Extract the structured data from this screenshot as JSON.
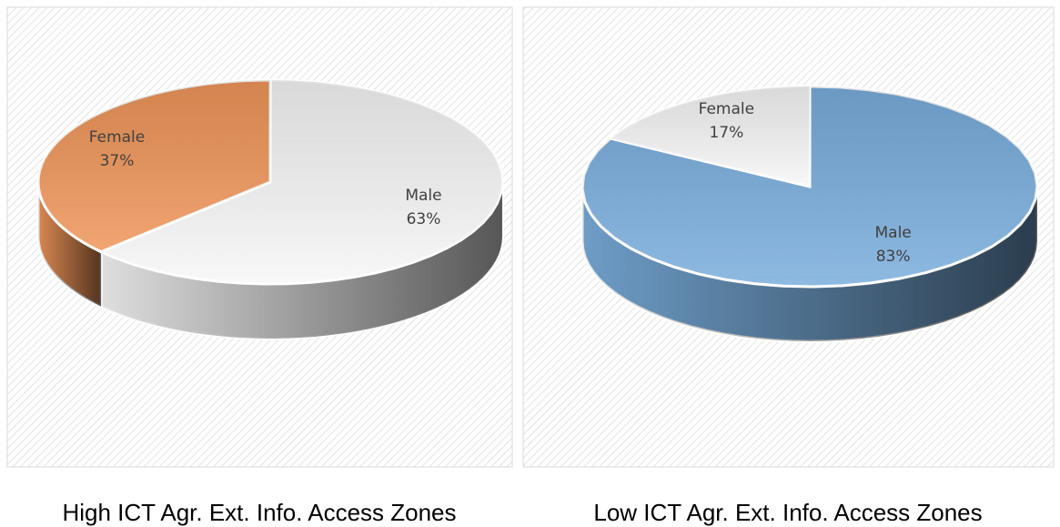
{
  "chart_data": [
    {
      "type": "pie",
      "title": "High ICT Agr. Ext. Info. Access Zones",
      "categories": [
        "Male",
        "Female"
      ],
      "values": [
        63,
        37
      ],
      "value_labels": [
        "63%",
        "37%"
      ],
      "colors": [
        "#f7f7f7",
        "#f0965a"
      ]
    },
    {
      "type": "pie",
      "title": "Low ICT Agr. Ext. Info. Access Zones",
      "categories": [
        "Male",
        "Female"
      ],
      "values": [
        83,
        17
      ],
      "value_labels": [
        "83%",
        "17%"
      ],
      "colors": [
        "#7aaedd",
        "#f7f7f7"
      ]
    }
  ]
}
